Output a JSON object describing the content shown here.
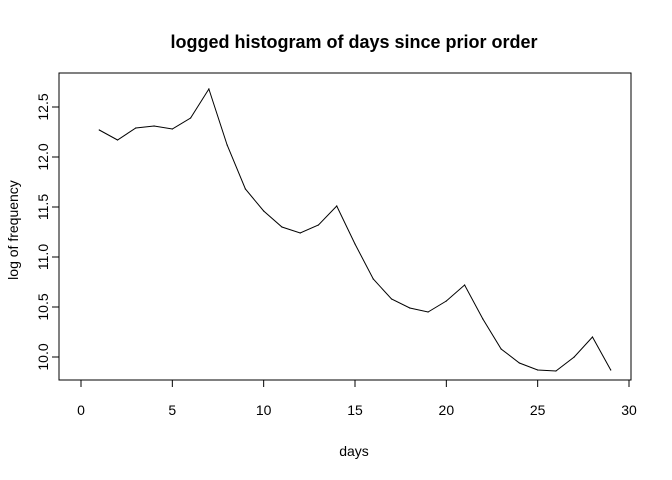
{
  "chart_data": {
    "type": "line",
    "title": "logged histogram of days since prior order",
    "xlabel": "days",
    "ylabel": "log of frequency",
    "xlim": [
      0,
      30
    ],
    "ylim": [
      9.88,
      12.7
    ],
    "x_ticks": [
      "0",
      "5",
      "10",
      "15",
      "20",
      "25",
      "30"
    ],
    "y_ticks": [
      "10.0",
      "10.5",
      "11.0",
      "11.5",
      "12.0",
      "12.5"
    ],
    "grid": false,
    "legend": "none",
    "series": [
      {
        "color": "#000000",
        "x": [
          1,
          2,
          3,
          4,
          5,
          6,
          7,
          8,
          9,
          10,
          11,
          12,
          13,
          14,
          15,
          16,
          17,
          18,
          19,
          20,
          21,
          22,
          23,
          24,
          25,
          26,
          27,
          28,
          29
        ],
        "values": [
          12.27,
          12.17,
          12.29,
          12.31,
          12.28,
          12.39,
          12.68,
          12.12,
          11.68,
          11.46,
          11.3,
          11.24,
          11.32,
          11.51,
          11.13,
          10.78,
          10.58,
          10.49,
          10.45,
          10.56,
          10.72,
          10.38,
          10.08,
          9.94,
          9.87,
          9.86,
          10.0,
          10.2,
          9.87
        ]
      }
    ]
  }
}
